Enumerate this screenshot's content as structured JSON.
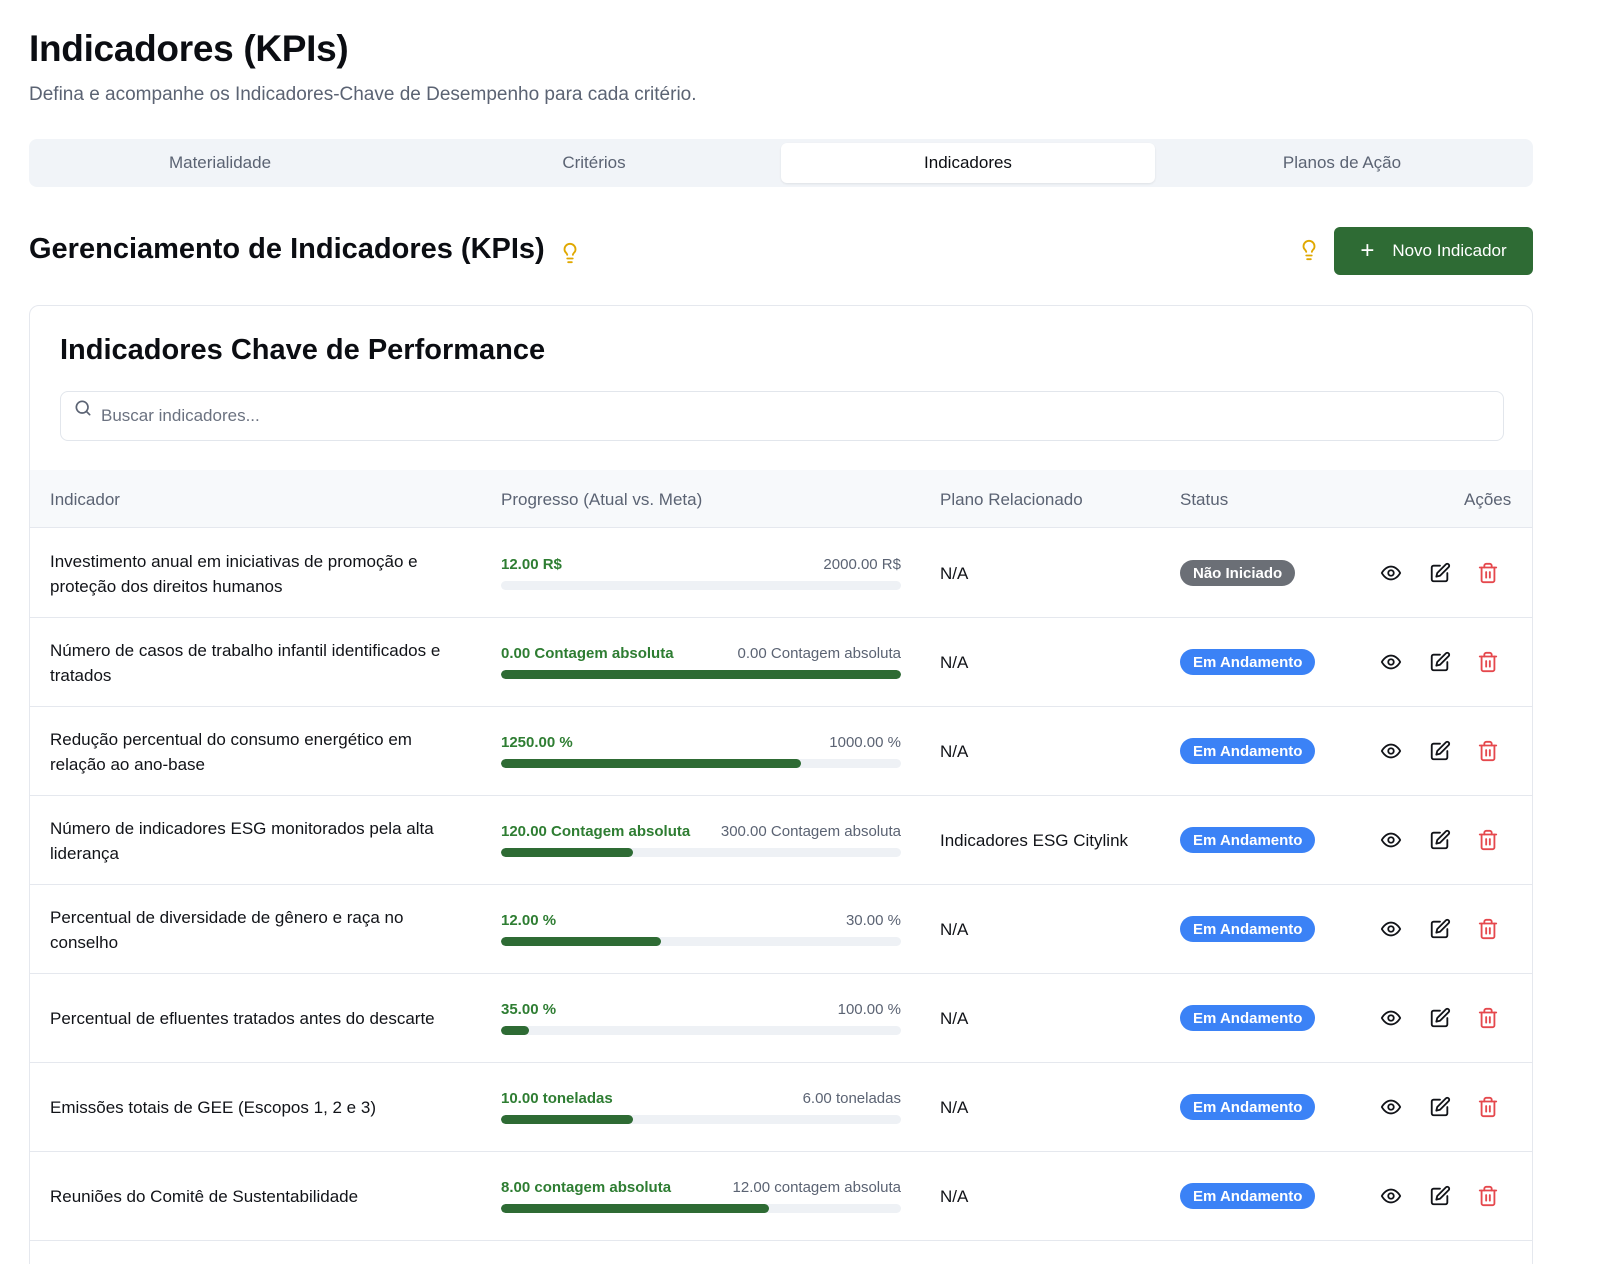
{
  "page": {
    "title": "Indicadores (KPIs)",
    "subtitle": "Defina e acompanhe os Indicadores-Chave de Desempenho para cada critério."
  },
  "tabs": [
    {
      "label": "Materialidade",
      "active": false
    },
    {
      "label": "Critérios",
      "active": false
    },
    {
      "label": "Indicadores",
      "active": true
    },
    {
      "label": "Planos de Ação",
      "active": false
    }
  ],
  "section": {
    "title": "Gerenciamento de Indicadores (KPIs)",
    "new_button_label": "Novo Indicador"
  },
  "card": {
    "title": "Indicadores Chave de Performance",
    "search_placeholder": "Buscar indicadores..."
  },
  "table": {
    "headers": {
      "indicator": "Indicador",
      "progress": "Progresso (Atual vs. Meta)",
      "plan": "Plano Relacionado",
      "status": "Status",
      "actions": "Ações"
    },
    "rows": [
      {
        "name": "Investimento anual em iniciativas de promoção e proteção dos direitos humanos",
        "current": "12.00 R$",
        "goal": "2000.00 R$",
        "progress_pct": 0,
        "plan": "N/A",
        "status": "Não Iniciado",
        "status_style": "grey"
      },
      {
        "name": "Número de casos de trabalho infantil identificados e tratados",
        "current": "0.00 Contagem absoluta",
        "goal": "0.00 Contagem absoluta",
        "progress_pct": 100,
        "plan": "N/A",
        "status": "Em Andamento",
        "status_style": "blue"
      },
      {
        "name": "Redução percentual do consumo energético em relação ao ano-base",
        "current": "1250.00 %",
        "goal": "1000.00 %",
        "progress_pct": 75,
        "plan": "N/A",
        "status": "Em Andamento",
        "status_style": "blue"
      },
      {
        "name": "Número de indicadores ESG monitorados pela alta liderança",
        "current": "120.00 Contagem absoluta",
        "goal": "300.00 Contagem absoluta",
        "progress_pct": 33,
        "plan": "Indicadores ESG Citylink",
        "status": "Em Andamento",
        "status_style": "blue"
      },
      {
        "name": "Percentual de diversidade de gênero e raça no conselho",
        "current": "12.00 %",
        "goal": "30.00 %",
        "progress_pct": 40,
        "plan": "N/A",
        "status": "Em Andamento",
        "status_style": "blue"
      },
      {
        "name": "Percentual de efluentes tratados antes do descarte",
        "current": "35.00 %",
        "goal": "100.00 %",
        "progress_pct": 7,
        "plan": "N/A",
        "status": "Em Andamento",
        "status_style": "blue"
      },
      {
        "name": "Emissões totais de GEE (Escopos 1, 2 e 3)",
        "current": "10.00 toneladas",
        "goal": "6.00 toneladas",
        "progress_pct": 33,
        "plan": "N/A",
        "status": "Em Andamento",
        "status_style": "blue"
      },
      {
        "name": "Reuniões do Comitê de Sustentabilidade",
        "current": "8.00 contagem absoluta",
        "goal": "12.00 contagem absoluta",
        "progress_pct": 67,
        "plan": "N/A",
        "status": "Em Andamento",
        "status_style": "blue"
      }
    ]
  },
  "colors": {
    "primary_green": "#2e6b34",
    "progress_text_green": "#2e7d32",
    "badge_blue": "#3b82f6",
    "badge_grey": "#6b6f76",
    "delete_red": "#e5484d",
    "bulb_yellow": "#e0a800"
  },
  "icons": [
    "lightbulb-icon",
    "plus-icon",
    "search-icon",
    "eye-icon",
    "edit-icon",
    "trash-icon"
  ]
}
